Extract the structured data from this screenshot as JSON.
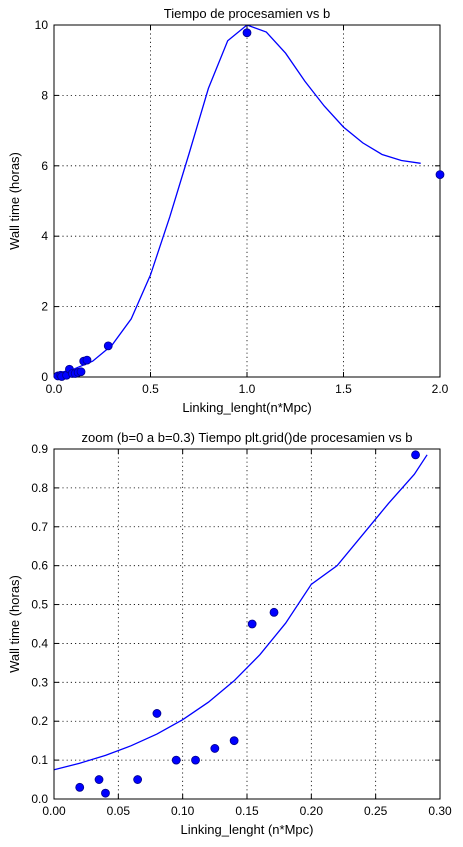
{
  "chart_data": [
    {
      "type": "line+scatter",
      "title": "Tiempo de procesamien vs b",
      "xlabel": "Linking_lenght(n*Mpc)",
      "ylabel": "Wall time (horas)",
      "xlim": [
        0,
        2.0
      ],
      "ylim": [
        0,
        10
      ],
      "xticks": [
        "0.0",
        "0.5",
        "1.0",
        "1.5",
        "2.0"
      ],
      "yticks": [
        "0",
        "2",
        "4",
        "6",
        "8",
        "10"
      ],
      "grid": true,
      "series": [
        {
          "kind": "line",
          "x": [
            0.0,
            0.1,
            0.2,
            0.3,
            0.4,
            0.5,
            0.6,
            0.7,
            0.8,
            0.9,
            1.0,
            1.1,
            1.2,
            1.3,
            1.4,
            1.5,
            1.6,
            1.7,
            1.8,
            1.9
          ],
          "y": [
            0.08,
            0.22,
            0.45,
            0.9,
            1.65,
            2.9,
            4.55,
            6.35,
            8.2,
            9.55,
            10.0,
            9.8,
            9.2,
            8.4,
            7.7,
            7.1,
            6.65,
            6.32,
            6.15,
            6.07
          ]
        },
        {
          "kind": "scatter",
          "x": [
            0.02,
            0.035,
            0.04,
            0.065,
            0.08,
            0.095,
            0.11,
            0.125,
            0.14,
            0.154,
            0.171,
            0.281,
            1.0,
            2.0
          ],
          "y": [
            0.03,
            0.05,
            0.015,
            0.05,
            0.22,
            0.1,
            0.1,
            0.13,
            0.15,
            0.45,
            0.48,
            0.885,
            9.78,
            5.75
          ]
        }
      ]
    },
    {
      "type": "line+scatter",
      "title": "zoom (b=0 a b=0.3) Tiempo plt.grid()de procesamien vs b",
      "xlabel": "Linking_lenght (n*Mpc)",
      "ylabel": "Wall time (horas)",
      "xlim": [
        0,
        0.3
      ],
      "ylim": [
        0,
        0.9
      ],
      "xticks": [
        "0.00",
        "0.05",
        "0.10",
        "0.15",
        "0.20",
        "0.25",
        "0.30"
      ],
      "yticks": [
        "0.0",
        "0.1",
        "0.2",
        "0.3",
        "0.4",
        "0.5",
        "0.6",
        "0.7",
        "0.8",
        "0.9"
      ],
      "grid": true,
      "series": [
        {
          "kind": "line",
          "x": [
            0.0,
            0.02,
            0.04,
            0.06,
            0.08,
            0.1,
            0.12,
            0.14,
            0.16,
            0.18,
            0.2,
            0.22,
            0.24,
            0.26,
            0.28,
            0.29
          ],
          "y": [
            0.075,
            0.092,
            0.112,
            0.137,
            0.167,
            0.204,
            0.249,
            0.304,
            0.371,
            0.452,
            0.552,
            0.6,
            0.68,
            0.76,
            0.835,
            0.885
          ]
        },
        {
          "kind": "scatter",
          "x": [
            0.02,
            0.035,
            0.04,
            0.065,
            0.08,
            0.095,
            0.11,
            0.125,
            0.14,
            0.154,
            0.171,
            0.281
          ],
          "y": [
            0.03,
            0.05,
            0.015,
            0.05,
            0.22,
            0.1,
            0.1,
            0.13,
            0.15,
            0.45,
            0.48,
            0.885
          ]
        }
      ]
    }
  ]
}
